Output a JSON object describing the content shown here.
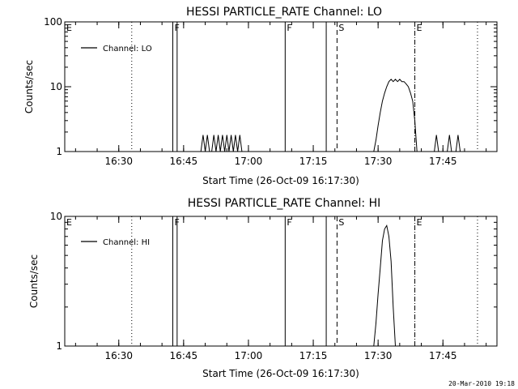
{
  "colors": {
    "background": "#ffffff",
    "foreground": "#000000"
  },
  "timestamp": "20-Mar-2010 19:18",
  "chart_data": [
    {
      "type": "line",
      "title": "HESSI PARTICLE_RATE Channel: LO",
      "xlabel": "Start Time (26-Oct-09 16:17:30)",
      "ylabel": "Counts/sec",
      "y_scale": "log",
      "ylim": [
        1,
        100
      ],
      "y_ticks": [
        {
          "value": 1,
          "label": "1"
        },
        {
          "value": 10,
          "label": "10"
        },
        {
          "value": 100,
          "label": "100"
        }
      ],
      "xlim": [
        "16:17:30",
        "17:57:30"
      ],
      "x_ticks": [
        "16:30",
        "16:45",
        "17:00",
        "17:15",
        "17:30",
        "17:45"
      ],
      "grid": false,
      "legend_position": "top-left",
      "series": [
        {
          "name": "Channel: LO",
          "x": [
            "16:49:00",
            "16:49:30",
            "16:50:00",
            "16:50:30",
            "16:51:00",
            "16:51:30",
            "16:52:00",
            "16:52:30",
            "16:53:00",
            "16:53:30",
            "16:54:00",
            "16:54:30",
            "16:55:00",
            "16:55:30",
            "16:56:00",
            "16:56:30",
            "16:57:00",
            "16:57:30",
            "16:58:00",
            "16:58:30",
            "16:59:00",
            "17:29:00",
            "17:29:30",
            "17:30:00",
            "17:30:30",
            "17:31:00",
            "17:31:30",
            "17:32:00",
            "17:32:30",
            "17:33:00",
            "17:33:30",
            "17:34:00",
            "17:34:30",
            "17:35:00",
            "17:35:30",
            "17:36:00",
            "17:36:30",
            "17:37:00",
            "17:37:30",
            "17:38:00",
            "17:38:30",
            "17:39:00",
            "17:43:00",
            "17:43:30",
            "17:44:00",
            "17:46:00",
            "17:46:30",
            "17:47:00",
            "17:48:00",
            "17:48:30",
            "17:49:00"
          ],
          "y": [
            1,
            1.8,
            1,
            1.8,
            1,
            1,
            1.8,
            1,
            1.8,
            1,
            1.8,
            1,
            1.8,
            1,
            1.8,
            1,
            1.8,
            1,
            1.8,
            1,
            1,
            1,
            1.5,
            2.5,
            4,
            6,
            8,
            10,
            12,
            13,
            12,
            13,
            12,
            13,
            12,
            12,
            11,
            10,
            8,
            6,
            3,
            1,
            1,
            1.8,
            1,
            1,
            1.8,
            1,
            1,
            1.8,
            1
          ]
        }
      ],
      "markers": [
        {
          "label": "E",
          "time": "16:17:30",
          "style": "dotted"
        },
        {
          "label": "",
          "time": "16:33:00",
          "style": "dotted"
        },
        {
          "label": "F",
          "time": "16:42:30",
          "style": "solid"
        },
        {
          "label": "",
          "time": "16:43:30",
          "style": "solid"
        },
        {
          "label": "F",
          "time": "17:08:30",
          "style": "solid"
        },
        {
          "label": "",
          "time": "17:18:00",
          "style": "solid"
        },
        {
          "label": "S",
          "time": "17:20:30",
          "style": "dashed"
        },
        {
          "label": "E",
          "time": "17:38:30",
          "style": "dashdot"
        },
        {
          "label": "",
          "time": "17:53:00",
          "style": "dotted"
        }
      ]
    },
    {
      "type": "line",
      "title": "HESSI PARTICLE_RATE Channel: HI",
      "xlabel": "Start Time (26-Oct-09 16:17:30)",
      "ylabel": "Counts/sec",
      "y_scale": "log",
      "ylim": [
        1,
        10
      ],
      "y_ticks": [
        {
          "value": 1,
          "label": "1"
        },
        {
          "value": 10,
          "label": "10"
        }
      ],
      "xlim": [
        "16:17:30",
        "17:57:30"
      ],
      "x_ticks": [
        "16:30",
        "16:45",
        "17:00",
        "17:15",
        "17:30",
        "17:45"
      ],
      "grid": false,
      "legend_position": "top-left",
      "series": [
        {
          "name": "Channel: HI",
          "x": [
            "17:29:00",
            "17:29:30",
            "17:30:00",
            "17:30:30",
            "17:31:00",
            "17:31:30",
            "17:32:00",
            "17:32:30",
            "17:33:00",
            "17:33:30",
            "17:34:00"
          ],
          "y": [
            1,
            1.5,
            2.5,
            4,
            6.5,
            8,
            8.5,
            7,
            4.5,
            2,
            1
          ]
        }
      ],
      "markers": [
        {
          "label": "E",
          "time": "16:17:30",
          "style": "dotted"
        },
        {
          "label": "",
          "time": "16:33:00",
          "style": "dotted"
        },
        {
          "label": "F",
          "time": "16:42:30",
          "style": "solid"
        },
        {
          "label": "",
          "time": "16:43:30",
          "style": "solid"
        },
        {
          "label": "F",
          "time": "17:08:30",
          "style": "solid"
        },
        {
          "label": "",
          "time": "17:18:00",
          "style": "solid"
        },
        {
          "label": "S",
          "time": "17:20:30",
          "style": "dashed"
        },
        {
          "label": "E",
          "time": "17:38:30",
          "style": "dashdot"
        },
        {
          "label": "",
          "time": "17:53:00",
          "style": "dotted"
        }
      ]
    }
  ]
}
